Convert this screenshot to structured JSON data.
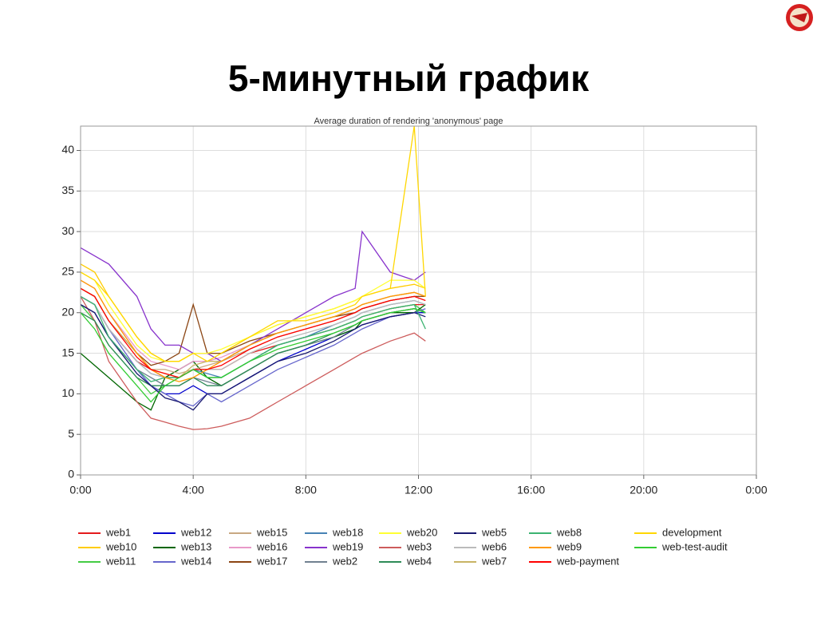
{
  "slide_title": "5-минутный график",
  "chart_data": {
    "type": "line",
    "title": "Average duration of rendering 'anonymous' page",
    "x": [
      0,
      0.5,
      1,
      2,
      2.5,
      3,
      3.5,
      4,
      4.5,
      5,
      6,
      7,
      8,
      9,
      9.75,
      10,
      11,
      11.85,
      12.25
    ],
    "xlim": [
      0,
      24
    ],
    "xticks": [
      {
        "value": 0,
        "label": "0:00"
      },
      {
        "value": 4,
        "label": "4:00"
      },
      {
        "value": 8,
        "label": "8:00"
      },
      {
        "value": 12,
        "label": "12:00"
      },
      {
        "value": 16,
        "label": "16:00"
      },
      {
        "value": 20,
        "label": "20:00"
      },
      {
        "value": 24,
        "label": "0:00"
      }
    ],
    "ylim": [
      0,
      43
    ],
    "yticks": [
      0,
      5,
      10,
      15,
      20,
      25,
      30,
      35,
      40
    ],
    "grid": true,
    "series": [
      {
        "name": "web1",
        "color": "#e41a1c",
        "values": [
          22,
          21,
          18,
          14,
          13,
          12,
          12,
          13,
          13,
          13,
          15,
          16,
          17,
          18,
          19,
          19.5,
          20.5,
          21,
          21
        ]
      },
      {
        "name": "web10",
        "color": "#ffcc00",
        "values": [
          26,
          25,
          22,
          17,
          15,
          14,
          14,
          15,
          15,
          15,
          17,
          18.5,
          19.5,
          20.5,
          21.5,
          22,
          23,
          23.5,
          23
        ]
      },
      {
        "name": "web11",
        "color": "#44cc44",
        "values": [
          21,
          19,
          16,
          12,
          10,
          11,
          12,
          13,
          12,
          12,
          14,
          16,
          17,
          18,
          19,
          19.5,
          20.5,
          21,
          20
        ]
      },
      {
        "name": "web12",
        "color": "#0000cc",
        "values": [
          21,
          20,
          17,
          13,
          11,
          10,
          10,
          11,
          10,
          10,
          12,
          14,
          15.5,
          17,
          18,
          18.5,
          19.5,
          20,
          20
        ]
      },
      {
        "name": "web13",
        "color": "#006600",
        "values": [
          15,
          13.5,
          12,
          9,
          8,
          12,
          13,
          14,
          12,
          11,
          13,
          15,
          16,
          17,
          18,
          19,
          20,
          20,
          21
        ]
      },
      {
        "name": "web14",
        "color": "#6666cc",
        "values": [
          22,
          21,
          18,
          13,
          11,
          10,
          9,
          8.5,
          10,
          9,
          11,
          13,
          14.5,
          16,
          17.5,
          18,
          19.5,
          20,
          20.5
        ]
      },
      {
        "name": "web15",
        "color": "#c8a882",
        "values": [
          23,
          22,
          19,
          15,
          13,
          13,
          12.5,
          13,
          13.5,
          14,
          15.5,
          17,
          18,
          19,
          20,
          20.5,
          21.5,
          22,
          22
        ]
      },
      {
        "name": "web16",
        "color": "#e899c8",
        "values": [
          24,
          23,
          20,
          15.5,
          14,
          13.5,
          13,
          14,
          14,
          14.5,
          16,
          17.5,
          18.5,
          19.5,
          20.5,
          21,
          22,
          22.5,
          22
        ]
      },
      {
        "name": "web17",
        "color": "#8b4513",
        "values": [
          23,
          22,
          19,
          15,
          13.5,
          14,
          15,
          21,
          15,
          15,
          16.5,
          17.5,
          18.5,
          19.5,
          20,
          20.5,
          21.5,
          22,
          22
        ]
      },
      {
        "name": "web18",
        "color": "#4682b4",
        "values": [
          22,
          21,
          18,
          14,
          12.5,
          12,
          12,
          13,
          12.5,
          12,
          14,
          16,
          17,
          18.5,
          19.5,
          20,
          21,
          21.5,
          21
        ]
      },
      {
        "name": "web19",
        "color": "#8833cc",
        "values": [
          28,
          27,
          26,
          22,
          18,
          16,
          16,
          15,
          15,
          14,
          16,
          18,
          20,
          22,
          23,
          30,
          25,
          24,
          25
        ]
      },
      {
        "name": "web2",
        "color": "#708090",
        "values": [
          21,
          20,
          17,
          13,
          12,
          11,
          11,
          12,
          11.5,
          11,
          13,
          15,
          16,
          17,
          18.5,
          19,
          20,
          20.5,
          20
        ]
      },
      {
        "name": "web20",
        "color": "#ffff33",
        "values": [
          25,
          24,
          21,
          16,
          14.5,
          14,
          14,
          15,
          15,
          15.5,
          17,
          18.5,
          19.5,
          20.5,
          21.5,
          22,
          24,
          24,
          23
        ]
      },
      {
        "name": "web3",
        "color": "#cd5c5c",
        "values": [
          22,
          19,
          14,
          9,
          7,
          6.5,
          6,
          5.6,
          5.7,
          6,
          7,
          9,
          11,
          13,
          14.5,
          15,
          16.5,
          17.5,
          16.5
        ]
      },
      {
        "name": "web4",
        "color": "#2e8b57",
        "values": [
          20,
          19,
          16,
          12,
          11,
          11,
          11,
          12,
          11,
          11,
          13,
          15,
          16,
          17.5,
          18.5,
          19,
          20,
          20.5,
          20
        ]
      },
      {
        "name": "web5",
        "color": "#191970",
        "values": [
          21,
          20,
          17,
          12.5,
          11,
          9.5,
          9,
          8,
          10,
          10,
          12,
          14,
          15,
          16.5,
          18,
          18.5,
          19.5,
          20,
          19.5
        ]
      },
      {
        "name": "web6",
        "color": "#bbbbbb",
        "values": [
          22,
          21,
          18,
          14,
          12.5,
          12,
          12,
          13,
          13,
          13,
          15,
          16.5,
          17.5,
          18.5,
          19.5,
          20,
          21,
          21.5,
          21
        ]
      },
      {
        "name": "web7",
        "color": "#c8b464",
        "values": [
          23,
          22,
          19,
          15,
          13,
          12.5,
          12,
          13.5,
          14,
          14,
          16,
          17.5,
          18.5,
          19.5,
          20.5,
          21,
          22,
          22.5,
          22
        ]
      },
      {
        "name": "web8",
        "color": "#3cb371",
        "values": [
          22,
          21,
          17,
          13,
          11.5,
          12,
          12,
          13,
          12,
          12,
          14,
          16,
          17,
          18,
          19,
          19.5,
          20.5,
          21,
          18
        ]
      },
      {
        "name": "web9",
        "color": "#ff9900",
        "values": [
          24,
          23,
          20,
          15,
          13,
          12,
          11.5,
          12,
          13,
          14,
          16,
          17.5,
          18.5,
          19.5,
          20.5,
          21,
          22,
          22.5,
          22
        ]
      },
      {
        "name": "web-payment",
        "color": "#ff0000",
        "values": [
          23,
          22,
          19,
          14.5,
          13,
          12.5,
          12,
          13,
          13,
          13.5,
          15.5,
          17,
          18,
          19,
          20,
          20.5,
          21.5,
          22,
          21.5
        ]
      },
      {
        "name": "development",
        "color": "#ffd700",
        "values": [
          25,
          24,
          22,
          17,
          15,
          14,
          14,
          15,
          14,
          15,
          17,
          19,
          19,
          20,
          21,
          22,
          23,
          43,
          22
        ]
      },
      {
        "name": "web-test-audit",
        "color": "#33cc33",
        "values": [
          20,
          18,
          15,
          11,
          9,
          11,
          12,
          13,
          12,
          12,
          14,
          15.5,
          16.5,
          17.5,
          18.5,
          19,
          20,
          20.5,
          20
        ]
      }
    ]
  }
}
